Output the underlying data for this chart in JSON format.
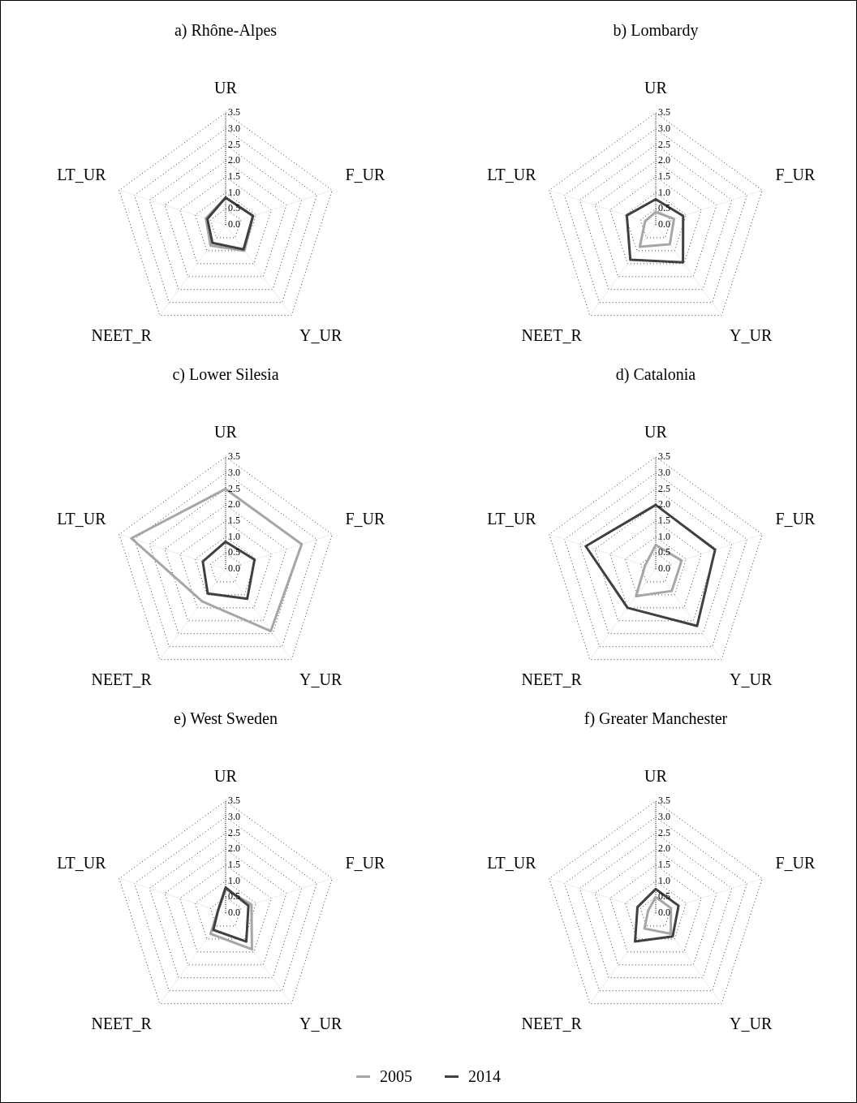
{
  "chart_data": [
    {
      "type": "radar",
      "title": "a) Rhône-Alpes",
      "categories": [
        "UR",
        "F_UR",
        "Y_UR",
        "NEET_R",
        "LT_UR"
      ],
      "series": [
        {
          "name": "2005",
          "color": "#a6a6a6",
          "values": [
            0.85,
            0.9,
            1.0,
            0.8,
            0.65
          ]
        },
        {
          "name": "2014",
          "color": "#404040",
          "values": [
            0.85,
            0.9,
            0.95,
            0.7,
            0.6
          ]
        }
      ],
      "ylim": [
        0,
        3.5
      ],
      "yticks": [
        {
          "value": 0,
          "label": "0.0"
        },
        0.5,
        {
          "value": 1,
          "label": "1.0"
        },
        1.5,
        {
          "value": 2,
          "label": "2.0"
        },
        2.5,
        {
          "value": 3,
          "label": "3.0"
        },
        3.5
      ],
      "grid": true,
      "legend": "bottom"
    },
    {
      "type": "radar",
      "title": "b) Lombardy",
      "categories": [
        "UR",
        "F_UR",
        "Y_UR",
        "NEET_R",
        "LT_UR"
      ],
      "series": [
        {
          "name": "2005",
          "color": "#a6a6a6",
          "values": [
            0.4,
            0.6,
            0.75,
            0.85,
            0.35
          ]
        },
        {
          "name": "2014",
          "color": "#404040",
          "values": [
            0.8,
            0.9,
            1.45,
            1.35,
            0.95
          ]
        }
      ],
      "ylim": [
        0,
        3.5
      ],
      "yticks": [
        {
          "value": 0,
          "label": "0.0"
        },
        0.5,
        {
          "value": 1,
          "label": "1.0"
        },
        1.5,
        {
          "value": 2,
          "label": "2.0"
        },
        2.5,
        {
          "value": 3,
          "label": "3.0"
        },
        3.5
      ],
      "grid": true,
      "legend": "bottom"
    },
    {
      "type": "radar",
      "title": "c) Lower Silesia",
      "categories": [
        "UR",
        "F_UR",
        "Y_UR",
        "NEET_R",
        "LT_UR"
      ],
      "series": [
        {
          "name": "2005",
          "color": "#a6a6a6",
          "values": [
            2.5,
            2.5,
            2.4,
            1.25,
            3.1
          ]
        },
        {
          "name": "2014",
          "color": "#404040",
          "values": [
            0.85,
            0.95,
            1.15,
            0.95,
            0.75
          ]
        }
      ],
      "ylim": [
        0,
        3.5
      ],
      "yticks": [
        {
          "value": 0,
          "label": "0.0"
        },
        0.5,
        {
          "value": 1,
          "label": "1.0"
        },
        1.5,
        {
          "value": 2,
          "label": "2.0"
        },
        2.5,
        {
          "value": 3,
          "label": "3.0"
        },
        3.5
      ],
      "grid": true,
      "legend": "bottom"
    },
    {
      "type": "radar",
      "title": "d) Catalonia",
      "categories": [
        "UR",
        "F_UR",
        "Y_UR",
        "NEET_R",
        "LT_UR"
      ],
      "series": [
        {
          "name": "2005",
          "color": "#a6a6a6",
          "values": [
            0.75,
            0.85,
            0.85,
            1.05,
            0.35
          ]
        },
        {
          "name": "2014",
          "color": "#404040",
          "values": [
            2.0,
            1.95,
            2.2,
            1.5,
            2.3
          ]
        }
      ],
      "ylim": [
        0,
        3.5
      ],
      "yticks": [
        {
          "value": 0,
          "label": "0.0"
        },
        0.5,
        {
          "value": 1,
          "label": "1.0"
        },
        1.5,
        {
          "value": 2,
          "label": "2.0"
        },
        2.5,
        {
          "value": 3,
          "label": "3.0"
        },
        3.5
      ],
      "grid": true,
      "legend": "bottom"
    },
    {
      "type": "radar",
      "title": "e) West Sweden",
      "categories": [
        "UR",
        "F_UR",
        "Y_UR",
        "NEET_R",
        "LT_UR"
      ],
      "series": [
        {
          "name": "2005",
          "color": "#a6a6a6",
          "values": [
            0.75,
            0.85,
            1.4,
            0.8,
            0.25
          ]
        },
        {
          "name": "2014",
          "color": "#404040",
          "values": [
            0.8,
            0.75,
            1.1,
            0.65,
            0.25
          ]
        }
      ],
      "ylim": [
        0,
        3.5
      ],
      "yticks": [
        {
          "value": 0,
          "label": "0.0"
        },
        0.5,
        {
          "value": 1,
          "label": "1.0"
        },
        1.5,
        {
          "value": 2,
          "label": "2.0"
        },
        2.5,
        {
          "value": 3,
          "label": "3.0"
        },
        3.5
      ],
      "grid": true,
      "legend": "bottom"
    },
    {
      "type": "radar",
      "title": "f) Greater Manchester",
      "categories": [
        "UR",
        "F_UR",
        "Y_UR",
        "NEET_R",
        "LT_UR"
      ],
      "series": [
        {
          "name": "2005",
          "color": "#a6a6a6",
          "values": [
            0.5,
            0.5,
            0.8,
            0.6,
            0.25
          ]
        },
        {
          "name": "2014",
          "color": "#404040",
          "values": [
            0.75,
            0.75,
            0.9,
            1.1,
            0.6
          ]
        }
      ],
      "ylim": [
        0,
        3.5
      ],
      "yticks": [
        {
          "value": 0,
          "label": "0.0"
        },
        0.5,
        {
          "value": 1,
          "label": "1.0"
        },
        1.5,
        {
          "value": 2,
          "label": "2.0"
        },
        2.5,
        {
          "value": 3,
          "label": "3.0"
        },
        3.5
      ],
      "grid": true,
      "legend": "bottom"
    }
  ]
}
